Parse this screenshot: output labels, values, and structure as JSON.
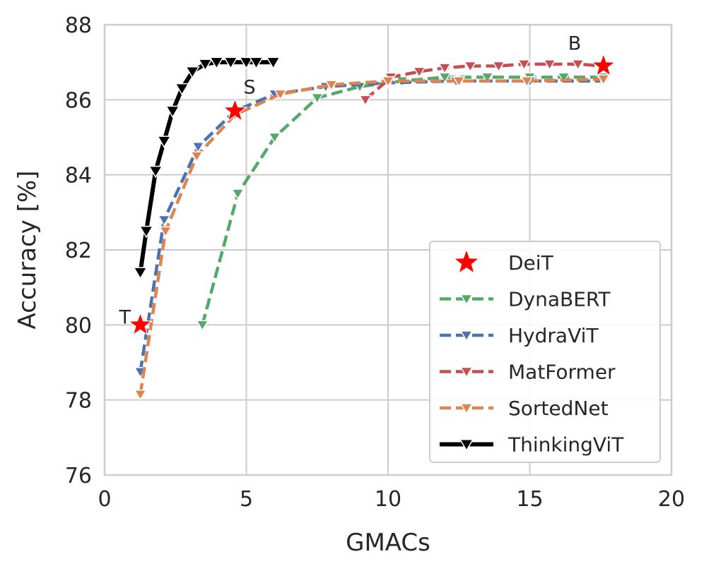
{
  "chart_data": {
    "type": "line",
    "title": "",
    "xlabel": "GMACs",
    "ylabel": "Accuracy [%]",
    "xlim": [
      0,
      20
    ],
    "ylim": [
      76,
      88
    ],
    "xticks": [
      0,
      5,
      10,
      15,
      20
    ],
    "yticks": [
      76,
      78,
      80,
      82,
      84,
      86,
      88
    ],
    "grid": true,
    "legend_position": "bottom-right",
    "series": [
      {
        "name": "DeiT",
        "color": "#ff0000",
        "style": "markers-only",
        "marker": "star",
        "points": [
          {
            "x": 1.26,
            "y": 80.0,
            "label": "T"
          },
          {
            "x": 4.6,
            "y": 85.7,
            "label": "S"
          },
          {
            "x": 17.6,
            "y": 86.9,
            "label": "B"
          }
        ]
      },
      {
        "name": "DynaBERT",
        "color": "#55a868",
        "style": "dashed",
        "marker": "triangle-down",
        "x": [
          3.45,
          4.7,
          6.0,
          7.5,
          9.0,
          10.5,
          12.0,
          13.5,
          15.0,
          16.2,
          17.6
        ],
        "y": [
          80.0,
          83.5,
          85.0,
          86.05,
          86.35,
          86.5,
          86.6,
          86.6,
          86.6,
          86.6,
          86.6
        ]
      },
      {
        "name": "HydraViT",
        "color": "#4c72b0",
        "style": "dashed",
        "marker": "triangle-down",
        "x": [
          1.26,
          2.1,
          3.3,
          4.6,
          6.0,
          7.8,
          10.0,
          12.4,
          15.0,
          17.6
        ],
        "y": [
          78.75,
          82.8,
          84.75,
          85.7,
          86.15,
          86.35,
          86.45,
          86.5,
          86.5,
          86.5
        ]
      },
      {
        "name": "MatFormer",
        "color": "#c44e52",
        "style": "dashed",
        "marker": "triangle-down",
        "x": [
          9.2,
          10.1,
          11.1,
          12.0,
          12.9,
          13.9,
          14.8,
          15.7,
          16.7,
          17.6
        ],
        "y": [
          86.0,
          86.6,
          86.75,
          86.85,
          86.9,
          86.9,
          86.95,
          86.95,
          86.95,
          86.9
        ]
      },
      {
        "name": "SortedNet",
        "color": "#dd8452",
        "style": "dashed",
        "marker": "triangle-down",
        "x": [
          1.26,
          2.15,
          3.25,
          4.6,
          6.2,
          8.0,
          10.0,
          12.5,
          14.9,
          17.6
        ],
        "y": [
          78.15,
          82.5,
          84.5,
          85.6,
          86.15,
          86.4,
          86.5,
          86.5,
          86.5,
          86.55
        ]
      },
      {
        "name": "ThinkingViT",
        "color": "#000000",
        "style": "solid",
        "marker": "triangle-down",
        "x": [
          1.26,
          1.47,
          1.8,
          2.1,
          2.4,
          2.73,
          3.1,
          3.55,
          3.95,
          4.45,
          5.0,
          5.35,
          5.95
        ],
        "y": [
          81.4,
          82.5,
          84.1,
          84.9,
          85.7,
          86.3,
          86.75,
          86.95,
          87.0,
          87.0,
          87.0,
          87.0,
          87.0
        ]
      }
    ]
  }
}
